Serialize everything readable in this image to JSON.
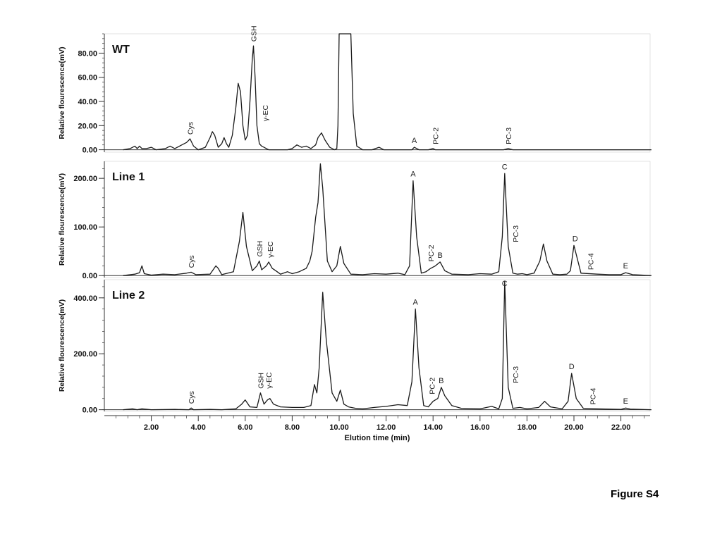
{
  "figure_label": "Figure S4",
  "chart_data": [
    {
      "type": "line",
      "panel": "WT",
      "title": "WT",
      "ylabel": "Relative flourescence(mV)",
      "xlabel": "",
      "xlim": [
        0,
        23.3
      ],
      "ylim": [
        -2,
        96
      ],
      "yticks": [
        "0.00",
        "20.00",
        "40.00",
        "60.00",
        "80.00"
      ],
      "ytick_values": [
        0,
        20,
        40,
        60,
        80
      ],
      "x": [
        0.8,
        1.1,
        1.3,
        1.4,
        1.5,
        1.6,
        1.8,
        2.0,
        2.2,
        2.6,
        2.8,
        3.0,
        3.3,
        3.5,
        3.6,
        3.65,
        3.8,
        4.0,
        4.3,
        4.5,
        4.6,
        4.7,
        4.85,
        5.0,
        5.1,
        5.2,
        5.3,
        5.45,
        5.6,
        5.7,
        5.8,
        5.9,
        6.0,
        6.1,
        6.2,
        6.3,
        6.35,
        6.42,
        6.5,
        6.6,
        6.7,
        6.8,
        6.9,
        7.0,
        7.2,
        7.5,
        7.8,
        8.0,
        8.2,
        8.4,
        8.6,
        8.8,
        9.0,
        9.1,
        9.25,
        9.4,
        9.6,
        9.8,
        9.9,
        9.95,
        10.0,
        10.5,
        10.6,
        10.75,
        11.0,
        11.4,
        11.7,
        11.9,
        12.2,
        12.6,
        13.0,
        13.1,
        13.2,
        13.4,
        13.8,
        14.0,
        14.1,
        14.2,
        14.4,
        15.0,
        16.0,
        17.0,
        17.2,
        17.4,
        18.0,
        19.0,
        20.0,
        21.0,
        22.0,
        23.3
      ],
      "series": [
        {
          "values": [
            0,
            1,
            3,
            1,
            3,
            1,
            1,
            2,
            0,
            1,
            3,
            1,
            4,
            6,
            8,
            9,
            3,
            0,
            2,
            10,
            15,
            12,
            2,
            5,
            10,
            5,
            2,
            12,
            35,
            55,
            48,
            20,
            8,
            12,
            40,
            75,
            86,
            60,
            20,
            5,
            3,
            2,
            1,
            0,
            0,
            0,
            0,
            1,
            4,
            2,
            3,
            1,
            4,
            10,
            14,
            8,
            2,
            0,
            1,
            20,
            96,
            96,
            30,
            3,
            0,
            0,
            2,
            0,
            0,
            0,
            0,
            0,
            2,
            0,
            0,
            1,
            0,
            0,
            0,
            0,
            0,
            0,
            1,
            0,
            0,
            0,
            0,
            0,
            0,
            0
          ]
        }
      ],
      "annotations": [
        {
          "text": "Cys",
          "x": 3.65,
          "rotated": true
        },
        {
          "text": "GSH",
          "x": 6.35,
          "rotated": true
        },
        {
          "text": "γ-EC",
          "x": 6.85,
          "rotated": true
        },
        {
          "text": "A",
          "x": 13.2,
          "rotated": false
        },
        {
          "text": "PC-2",
          "x": 14.1,
          "rotated": true
        },
        {
          "text": "PC-3",
          "x": 17.2,
          "rotated": true
        }
      ]
    },
    {
      "type": "line",
      "panel": "Line 1",
      "title": "Line 1",
      "ylabel": "Relative flourescence(mV)",
      "xlabel": "",
      "xlim": [
        0,
        23.3
      ],
      "ylim": [
        -4,
        235
      ],
      "yticks": [
        "0.00",
        "100.00",
        "200.00"
      ],
      "ytick_values": [
        0,
        100,
        200
      ],
      "x": [
        0.8,
        1.3,
        1.5,
        1.6,
        1.7,
        2.0,
        2.5,
        3.0,
        3.5,
        3.7,
        3.9,
        4.5,
        4.75,
        4.85,
        5.0,
        5.5,
        5.75,
        5.9,
        6.05,
        6.3,
        6.5,
        6.6,
        6.7,
        6.9,
        7.0,
        7.15,
        7.3,
        7.5,
        7.8,
        8.0,
        8.3,
        8.6,
        8.75,
        8.85,
        9.0,
        9.1,
        9.2,
        9.3,
        9.5,
        9.7,
        9.9,
        10.05,
        10.2,
        10.5,
        11.0,
        11.5,
        12.0,
        12.5,
        12.8,
        13.0,
        13.15,
        13.3,
        13.5,
        13.7,
        13.9,
        14.1,
        14.3,
        14.5,
        14.8,
        15.5,
        16.0,
        16.5,
        16.8,
        16.95,
        17.05,
        17.2,
        17.4,
        17.6,
        17.8,
        18.0,
        18.3,
        18.55,
        18.7,
        18.85,
        19.1,
        19.4,
        19.7,
        19.85,
        20.0,
        20.3,
        21.0,
        21.5,
        22.0,
        22.2,
        22.5,
        23.3
      ],
      "series": [
        {
          "values": [
            0,
            3,
            6,
            20,
            4,
            1,
            3,
            2,
            5,
            7,
            2,
            3,
            20,
            15,
            2,
            8,
            70,
            130,
            60,
            10,
            20,
            30,
            12,
            20,
            28,
            15,
            10,
            3,
            8,
            4,
            8,
            15,
            30,
            50,
            120,
            150,
            230,
            180,
            30,
            8,
            20,
            60,
            25,
            3,
            2,
            4,
            3,
            5,
            2,
            20,
            195,
            80,
            5,
            8,
            15,
            20,
            28,
            10,
            3,
            2,
            4,
            3,
            8,
            80,
            210,
            60,
            5,
            3,
            4,
            2,
            5,
            30,
            65,
            30,
            3,
            2,
            3,
            10,
            62,
            5,
            3,
            2,
            2,
            6,
            2,
            0
          ]
        }
      ],
      "annotations": [
        {
          "text": "Cys",
          "x": 3.7,
          "rotated": true
        },
        {
          "text": "GSH",
          "x": 6.6,
          "rotated": true
        },
        {
          "text": "γ-EC",
          "x": 7.05,
          "rotated": true
        },
        {
          "text": "A",
          "x": 13.15,
          "rotated": false
        },
        {
          "text": "PC-2",
          "x": 13.9,
          "rotated": true
        },
        {
          "text": "B",
          "x": 14.3,
          "rotated": false
        },
        {
          "text": "C",
          "x": 17.05,
          "rotated": false
        },
        {
          "text": "PC-3",
          "x": 17.5,
          "rotated": true
        },
        {
          "text": "D",
          "x": 20.05,
          "rotated": false
        },
        {
          "text": "PC-4",
          "x": 20.7,
          "rotated": true
        },
        {
          "text": "E",
          "x": 22.2,
          "rotated": false
        }
      ]
    },
    {
      "type": "line",
      "panel": "Line 2",
      "title": "Line 2",
      "ylabel": "Relative flourescence(mV)",
      "xlabel": "Elution time (min)",
      "xlim": [
        0,
        23.3
      ],
      "ylim": [
        -6,
        465
      ],
      "yticks": [
        "0.00",
        "200.00",
        "400.00"
      ],
      "ytick_values": [
        0,
        200,
        400
      ],
      "xticks": [
        "2.00",
        "4.00",
        "6.00",
        "8.00",
        "10.00",
        "12.00",
        "14.00",
        "16.00",
        "18.00",
        "20.00",
        "22.00"
      ],
      "xtick_values": [
        2,
        4,
        6,
        8,
        10,
        12,
        14,
        16,
        18,
        20,
        22
      ],
      "x": [
        0.8,
        1.2,
        1.4,
        1.6,
        2.0,
        3.0,
        3.6,
        3.7,
        3.8,
        4.5,
        5.0,
        5.6,
        5.85,
        6.0,
        6.2,
        6.5,
        6.65,
        6.8,
        6.95,
        7.05,
        7.2,
        7.5,
        8.0,
        8.5,
        8.8,
        8.95,
        9.05,
        9.15,
        9.3,
        9.45,
        9.7,
        9.9,
        10.05,
        10.2,
        10.4,
        10.7,
        11.0,
        11.5,
        12.0,
        12.5,
        12.9,
        13.1,
        13.25,
        13.4,
        13.6,
        13.8,
        14.0,
        14.2,
        14.35,
        14.5,
        14.8,
        15.2,
        16.0,
        16.5,
        16.8,
        16.95,
        17.05,
        17.2,
        17.4,
        17.7,
        18.0,
        18.5,
        18.75,
        19.0,
        19.5,
        19.75,
        19.9,
        20.1,
        20.4,
        21.0,
        22.0,
        22.2,
        22.4,
        23.3
      ],
      "series": [
        {
          "values": [
            0,
            3,
            0,
            3,
            0,
            1,
            0,
            6,
            0,
            1,
            0,
            3,
            20,
            35,
            10,
            8,
            60,
            20,
            35,
            40,
            20,
            10,
            8,
            8,
            15,
            90,
            60,
            150,
            420,
            250,
            60,
            30,
            70,
            20,
            10,
            5,
            3,
            8,
            12,
            18,
            15,
            100,
            360,
            150,
            15,
            10,
            30,
            40,
            80,
            50,
            15,
            5,
            3,
            12,
            3,
            40,
            460,
            80,
            5,
            8,
            3,
            8,
            30,
            10,
            3,
            30,
            130,
            40,
            5,
            3,
            1,
            6,
            2,
            0
          ]
        }
      ],
      "annotations": [
        {
          "text": "Cys",
          "x": 3.7,
          "rotated": true
        },
        {
          "text": "GSH",
          "x": 6.65,
          "rotated": true
        },
        {
          "text": "γ-EC",
          "x": 7.0,
          "rotated": true
        },
        {
          "text": "A",
          "x": 13.25,
          "rotated": false
        },
        {
          "text": "PC-2",
          "x": 13.95,
          "rotated": true
        },
        {
          "text": "B",
          "x": 14.35,
          "rotated": false
        },
        {
          "text": "C",
          "x": 17.05,
          "rotated": false
        },
        {
          "text": "PC-3",
          "x": 17.5,
          "rotated": true
        },
        {
          "text": "D",
          "x": 19.9,
          "rotated": false
        },
        {
          "text": "PC-4",
          "x": 20.8,
          "rotated": true
        },
        {
          "text": "E",
          "x": 22.2,
          "rotated": false
        }
      ]
    }
  ]
}
